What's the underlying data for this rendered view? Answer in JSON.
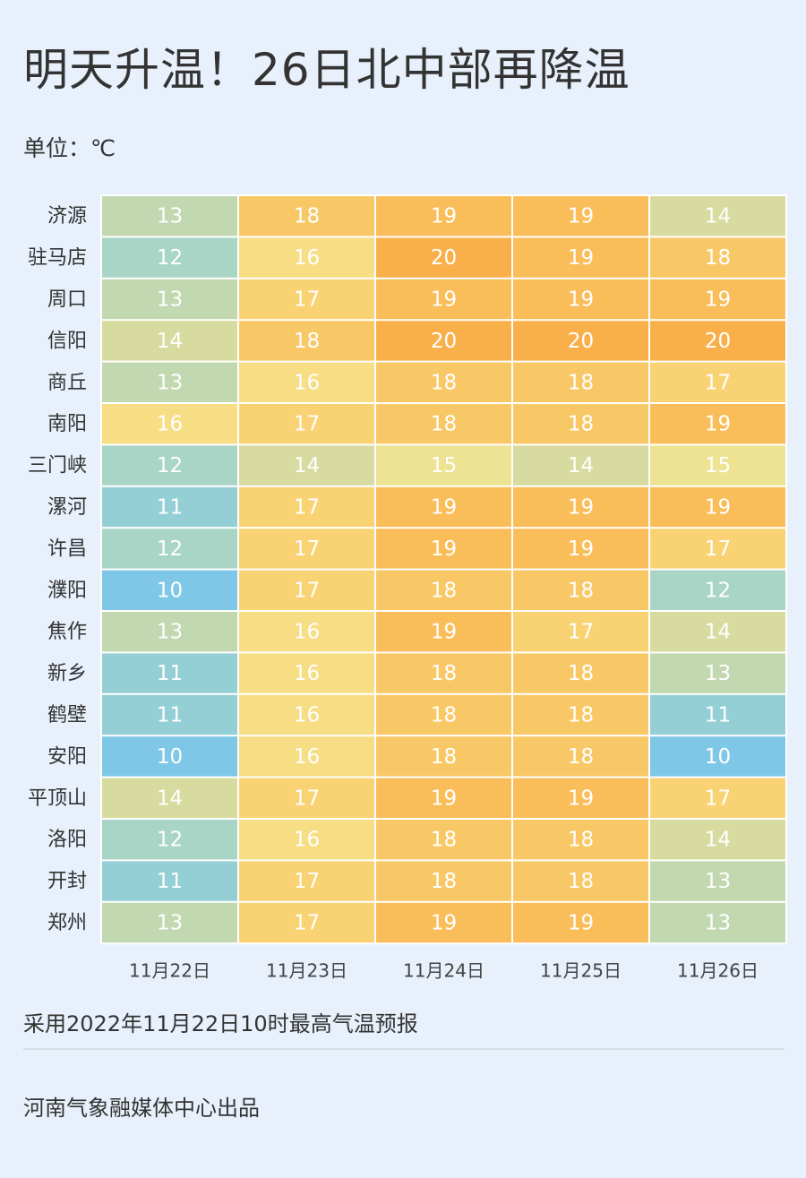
{
  "header": {
    "title": "明天升温！26日北中部再降温",
    "unit": "单位：℃"
  },
  "chart_data": {
    "type": "heatmap",
    "title": "明天升温！26日北中部再降温",
    "unit": "℃",
    "rows": [
      "济源",
      "驻马店",
      "周口",
      "信阳",
      "商丘",
      "南阳",
      "三门峡",
      "漯河",
      "许昌",
      "濮阳",
      "焦作",
      "新乡",
      "鹤壁",
      "安阳",
      "平顶山",
      "洛阳",
      "开封",
      "郑州"
    ],
    "columns": [
      "11月22日",
      "11月23日",
      "11月24日",
      "11月25日",
      "11月26日"
    ],
    "values": [
      [
        13,
        18,
        19,
        19,
        14
      ],
      [
        12,
        16,
        20,
        19,
        18
      ],
      [
        13,
        17,
        19,
        19,
        19
      ],
      [
        14,
        18,
        20,
        20,
        20
      ],
      [
        13,
        16,
        18,
        18,
        17
      ],
      [
        16,
        17,
        18,
        18,
        19
      ],
      [
        12,
        14,
        15,
        14,
        15
      ],
      [
        11,
        17,
        19,
        19,
        19
      ],
      [
        12,
        17,
        19,
        19,
        17
      ],
      [
        10,
        17,
        18,
        18,
        12
      ],
      [
        13,
        16,
        19,
        17,
        14
      ],
      [
        11,
        16,
        18,
        18,
        13
      ],
      [
        11,
        16,
        18,
        18,
        11
      ],
      [
        10,
        16,
        18,
        18,
        10
      ],
      [
        14,
        17,
        19,
        19,
        17
      ],
      [
        12,
        16,
        18,
        18,
        14
      ],
      [
        11,
        17,
        18,
        18,
        13
      ],
      [
        13,
        17,
        19,
        19,
        13
      ]
    ],
    "color_scale": {
      "10": "#7ec7e6",
      "11": "#95cfd6",
      "12": "#a9d5c6",
      "13": "#c1d8b1",
      "14": "#d8dba0",
      "15": "#ede393",
      "16": "#f7dd84",
      "17": "#f9d274",
      "18": "#f9c866",
      "19": "#f9bd59",
      "20": "#f9b04a"
    }
  },
  "footer": {
    "note": "采用2022年11月22日10时最高气温预报",
    "producer": "河南气象融媒体中心出品"
  }
}
